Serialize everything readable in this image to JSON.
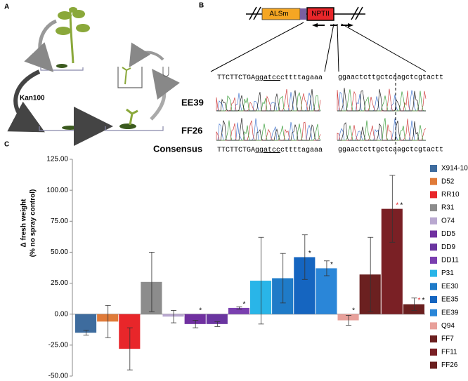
{
  "panels": {
    "a": "A",
    "b": "B",
    "c": "C"
  },
  "panel_a": {
    "treatment": "Kan100"
  },
  "panel_b": {
    "construct": {
      "left": "ALSm",
      "right": "NPTII"
    },
    "reference": {
      "prefix": "TTCTTCTGA",
      "site": "ggatcc",
      "suffix": "cttttagaaa",
      "junction": "ggaactcttgctcaagctcgtactt"
    },
    "lines": [
      "EE39",
      "FF26"
    ],
    "consensus_label": "Consensus",
    "consensus": {
      "prefix": "TTCTTCTGA",
      "site": "ggatcc",
      "suffix": "cttttagaaa",
      "junction": "ggaactcttgctcaagctcgtactt"
    }
  },
  "chart_data": {
    "type": "bar",
    "ylabel": "Δ fresh weight",
    "ylabel_sub": "(% no spray control)",
    "categories": [
      "X914-10",
      "D52",
      "RR10",
      "R31",
      "O74",
      "DD5",
      "DD9",
      "DD11",
      "P31",
      "EE30",
      "EE35",
      "EE39",
      "Q94",
      "FF7",
      "FF11",
      "FF26"
    ],
    "values": [
      -15,
      -6,
      -28,
      26,
      -2,
      -8,
      -8,
      5,
      27,
      29,
      46,
      37,
      -5,
      32,
      85,
      8
    ],
    "errors": [
      2,
      13,
      17,
      24,
      5,
      3,
      2,
      1,
      35,
      20,
      18,
      6,
      4,
      30,
      27,
      5
    ],
    "colors": [
      "#3e6c9e",
      "#e07b39",
      "#e8262a",
      "#8c8c8c",
      "#b9a8d0",
      "#7030a0",
      "#6a35a0",
      "#7a3fb0",
      "#29b5e8",
      "#1f7bc8",
      "#1565c0",
      "#2a86d8",
      "#e8a09a",
      "#6b2020",
      "#7a2025",
      "#6a1f1f"
    ],
    "significance_red": [
      null,
      null,
      null,
      null,
      null,
      null,
      null,
      null,
      null,
      null,
      null,
      null,
      null,
      null,
      "*",
      "*"
    ],
    "significance": [
      null,
      null,
      null,
      null,
      null,
      "*",
      null,
      "*",
      null,
      null,
      "*",
      "*",
      "*",
      null,
      "*",
      "*"
    ],
    "ylim": [
      -50,
      125
    ],
    "yticks": [
      {
        "value": -50,
        "label": "-50.00"
      },
      {
        "value": -25,
        "label": "-25.00"
      },
      {
        "value": 0,
        "label": "0.00"
      },
      {
        "value": 25,
        "label": "25.00"
      },
      {
        "value": 50,
        "label": "50.00"
      },
      {
        "value": 75,
        "label": "75.00"
      },
      {
        "value": 100,
        "label": "100.00"
      },
      {
        "value": 125,
        "label": "125.00"
      }
    ],
    "legend": "right"
  }
}
